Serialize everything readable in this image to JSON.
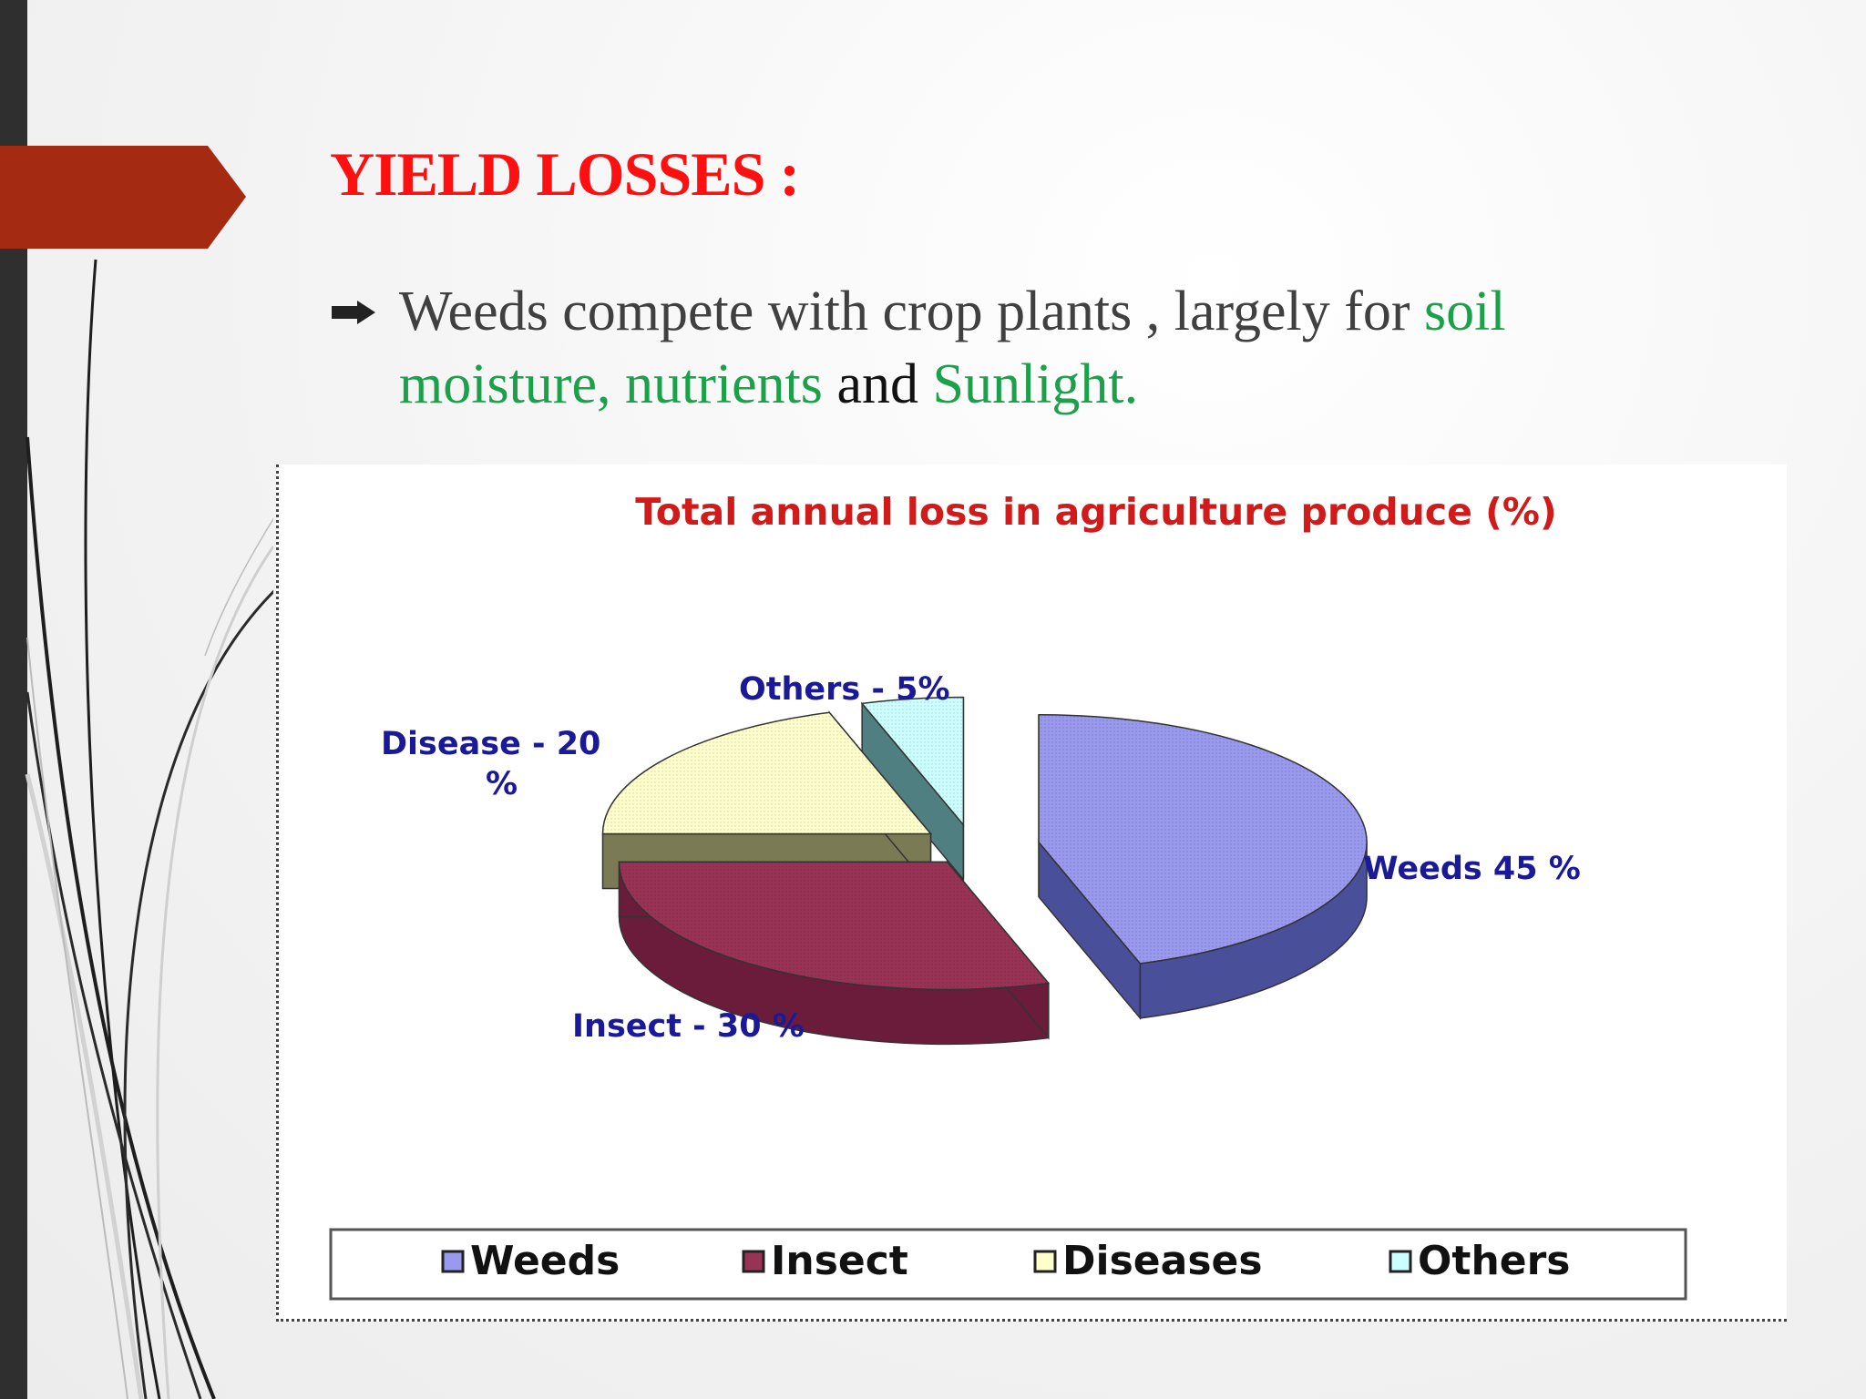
{
  "slide": {
    "title": "YIELD LOSSES :",
    "bullet": {
      "part1": "Weeds compete with crop plants , largely for ",
      "part2": "soil moisture, nutrients",
      "part3": " and ",
      "part4": "Sunlight."
    }
  },
  "colors": {
    "title": "#ff1010",
    "accent_arrow": "#a52a12",
    "highlight_text": "#1aa14a"
  },
  "chart_data": {
    "type": "pie",
    "title": "Total annual loss in agriculture produce (%)",
    "categories": [
      "Weeds",
      "Insect",
      "Diseases",
      "Others"
    ],
    "values": [
      45,
      30,
      20,
      5
    ],
    "slice_labels": [
      "Weeds 45 %",
      "Insect - 30 %",
      "Disease - 20 %",
      "Others - 5%"
    ],
    "legend": [
      "Weeds",
      "Insect",
      "Diseases",
      "Others"
    ],
    "legend_position": "bottom",
    "style": "3d-exploded",
    "colors": [
      "#9999ee",
      "#993355",
      "#ffffcc",
      "#ccffff"
    ],
    "side_colors": [
      "#4a4f9a",
      "#6a1c3a",
      "#7a7a55",
      "#4f7f80"
    ]
  }
}
